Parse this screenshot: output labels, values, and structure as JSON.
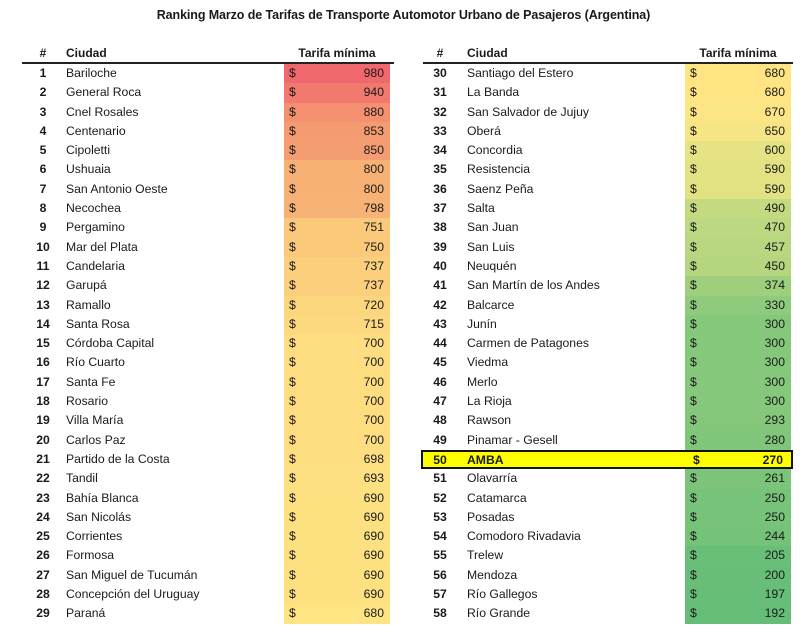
{
  "title": "Ranking Marzo de Tarifas de Transporte Automotor Urbano de Pasajeros (Argentina)",
  "headers": {
    "num": "#",
    "city": "Ciudad",
    "fare": "Tarifa mínima"
  },
  "currency": "$",
  "highlight_color": "#ffff00",
  "left": [
    {
      "n": "1",
      "city": "Bariloche",
      "fare": "980",
      "color": "#f0676e"
    },
    {
      "n": "2",
      "city": "General Roca",
      "fare": "940",
      "color": "#f2796e"
    },
    {
      "n": "3",
      "city": "Cnel Rosales",
      "fare": "880",
      "color": "#f4906f"
    },
    {
      "n": "4",
      "city": "Centenario",
      "fare": "853",
      "color": "#f59b71"
    },
    {
      "n": "5",
      "city": "Cipoletti",
      "fare": "850",
      "color": "#f59d72"
    },
    {
      "n": "6",
      "city": "Ushuaia",
      "fare": "800",
      "color": "#f7b174"
    },
    {
      "n": "7",
      "city": "San Antonio Oeste",
      "fare": "800",
      "color": "#f7b174"
    },
    {
      "n": "8",
      "city": "Necochea",
      "fare": "798",
      "color": "#f7b375"
    },
    {
      "n": "9",
      "city": "Pergamino",
      "fare": "751",
      "color": "#fac97a"
    },
    {
      "n": "10",
      "city": "Mar del Plata",
      "fare": "750",
      "color": "#fac97a"
    },
    {
      "n": "11",
      "city": "Candelaria",
      "fare": "737",
      "color": "#fbcf7c"
    },
    {
      "n": "12",
      "city": "Garupá",
      "fare": "737",
      "color": "#fbcf7c"
    },
    {
      "n": "13",
      "city": "Ramallo",
      "fare": "720",
      "color": "#fcd67d"
    },
    {
      "n": "14",
      "city": "Santa Rosa",
      "fare": "715",
      "color": "#fcd87e"
    },
    {
      "n": "15",
      "city": "Córdoba Capital",
      "fare": "700",
      "color": "#fddd80"
    },
    {
      "n": "16",
      "city": "Río Cuarto",
      "fare": "700",
      "color": "#fddd80"
    },
    {
      "n": "17",
      "city": "Santa Fe",
      "fare": "700",
      "color": "#fddd80"
    },
    {
      "n": "18",
      "city": "Rosario",
      "fare": "700",
      "color": "#fddd80"
    },
    {
      "n": "19",
      "city": "Villa María",
      "fare": "700",
      "color": "#fddd80"
    },
    {
      "n": "20",
      "city": "Carlos Paz",
      "fare": "700",
      "color": "#fddd80"
    },
    {
      "n": "21",
      "city": "Partido de la Costa",
      "fare": "698",
      "color": "#fdde80"
    },
    {
      "n": "22",
      "city": "Tandil",
      "fare": "693",
      "color": "#fde081"
    },
    {
      "n": "23",
      "city": "Bahía Blanca",
      "fare": "690",
      "color": "#fde181"
    },
    {
      "n": "24",
      "city": "San Nicolás",
      "fare": "690",
      "color": "#fde181"
    },
    {
      "n": "25",
      "city": "Corrientes",
      "fare": "690",
      "color": "#fde181"
    },
    {
      "n": "26",
      "city": "Formosa",
      "fare": "690",
      "color": "#fde181"
    },
    {
      "n": "27",
      "city": "San Miguel de Tucumán",
      "fare": "690",
      "color": "#fde181"
    },
    {
      "n": "28",
      "city": "Concepción del Uruguay",
      "fare": "690",
      "color": "#fde181"
    },
    {
      "n": "29",
      "city": "Paraná",
      "fare": "680",
      "color": "#fee483"
    }
  ],
  "right": [
    {
      "n": "30",
      "city": "Santiago del Estero",
      "fare": "680",
      "color": "#fee483"
    },
    {
      "n": "31",
      "city": "La Banda",
      "fare": "680",
      "color": "#fee483"
    },
    {
      "n": "32",
      "city": "San Salvador de Jujuy",
      "fare": "670",
      "color": "#fbe584"
    },
    {
      "n": "33",
      "city": "Oberá",
      "fare": "650",
      "color": "#f5e584"
    },
    {
      "n": "34",
      "city": "Concordia",
      "fare": "600",
      "color": "#e6e384"
    },
    {
      "n": "35",
      "city": "Resistencia",
      "fare": "590",
      "color": "#e2e283"
    },
    {
      "n": "36",
      "city": "Saenz Peña",
      "fare": "590",
      "color": "#e2e283"
    },
    {
      "n": "37",
      "city": "Salta",
      "fare": "490",
      "color": "#c3da81"
    },
    {
      "n": "38",
      "city": "San Juan",
      "fare": "470",
      "color": "#bcd880"
    },
    {
      "n": "39",
      "city": "San Luis",
      "fare": "457",
      "color": "#b8d780"
    },
    {
      "n": "40",
      "city": "Neuquén",
      "fare": "450",
      "color": "#b5d67f"
    },
    {
      "n": "41",
      "city": "San Martín de los Andes",
      "fare": "374",
      "color": "#9dcf7d"
    },
    {
      "n": "42",
      "city": "Balcarce",
      "fare": "330",
      "color": "#8fcb7c"
    },
    {
      "n": "43",
      "city": "Junín",
      "fare": "300",
      "color": "#86c87b"
    },
    {
      "n": "44",
      "city": "Carmen de Patagones",
      "fare": "300",
      "color": "#86c87b"
    },
    {
      "n": "45",
      "city": "Viedma",
      "fare": "300",
      "color": "#86c87b"
    },
    {
      "n": "46",
      "city": "Merlo",
      "fare": "300",
      "color": "#86c87b"
    },
    {
      "n": "47",
      "city": "La Rioja",
      "fare": "300",
      "color": "#86c87b"
    },
    {
      "n": "48",
      "city": "Rawson",
      "fare": "293",
      "color": "#84c77b"
    },
    {
      "n": "49",
      "city": "Pinamar - Gesell",
      "fare": "280",
      "color": "#80c67a"
    },
    {
      "n": "50",
      "city": "AMBA",
      "fare": "270",
      "color": "#ffff00",
      "highlight": true
    },
    {
      "n": "51",
      "city": "Olavarría",
      "fare": "261",
      "color": "#7bc479"
    },
    {
      "n": "52",
      "city": "Catamarca",
      "fare": "250",
      "color": "#77c379"
    },
    {
      "n": "53",
      "city": "Posadas",
      "fare": "250",
      "color": "#77c379"
    },
    {
      "n": "54",
      "city": "Comodoro Rivadavia",
      "fare": "244",
      "color": "#75c279"
    },
    {
      "n": "55",
      "city": "Trelew",
      "fare": "205",
      "color": "#69bf78"
    },
    {
      "n": "56",
      "city": "Mendoza",
      "fare": "200",
      "color": "#68be78"
    },
    {
      "n": "57",
      "city": "Río Gallegos",
      "fare": "197",
      "color": "#67be78"
    },
    {
      "n": "58",
      "city": "Río Grande",
      "fare": "192",
      "color": "#65bd78"
    }
  ]
}
